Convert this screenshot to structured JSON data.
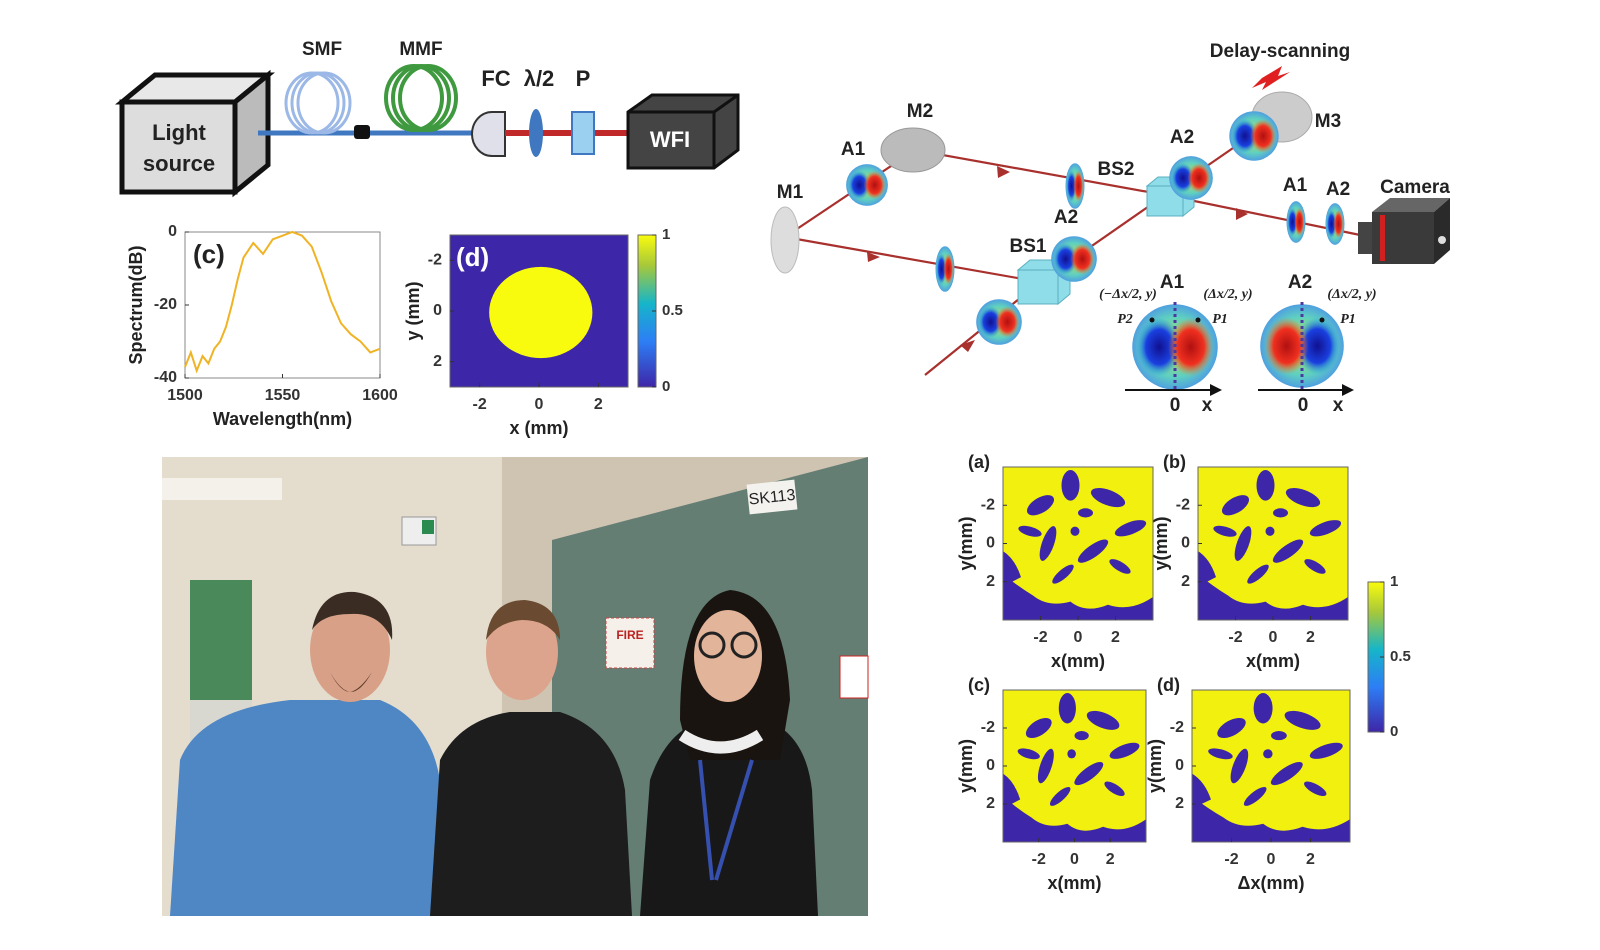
{
  "setup": {
    "light_source": [
      "Light",
      "source"
    ],
    "smf": "SMF",
    "mmf": "MMF",
    "fc": "FC",
    "half_wave": "λ/2",
    "polarizer": "P",
    "wfi": "WFI"
  },
  "interferometer": {
    "delay": "Delay-scanning",
    "m1": "M1",
    "m2": "M2",
    "m3": "M3",
    "bs1": "BS1",
    "bs2": "BS2",
    "camera": "Camera",
    "a1_arm": "A1",
    "a2_bs2": "A2",
    "a2_bs1": "A2",
    "a1_out": "A1",
    "a2_out": "A2",
    "inset_left": {
      "title": "A1",
      "left_point": "(−Δx/2, y)",
      "right_point": "(Δx/2, y)",
      "left_name": "P2",
      "right_name": "P1",
      "origin": "0",
      "axis": "x"
    },
    "inset_right": {
      "title": "A2",
      "right_point": "(Δx/2, y)",
      "right_name": "P1",
      "origin": "0",
      "axis": "x"
    }
  },
  "photo": {
    "door_sign": "SK113",
    "fire_sign": "FIRE"
  },
  "chart_data": [
    {
      "type": "line",
      "panel_label": "(c)",
      "x_label": "Wavelength(nm)",
      "y_label": "Spectrum(dB)",
      "color": "#f0b323",
      "x": [
        1500,
        1503,
        1506,
        1509,
        1512,
        1515,
        1518,
        1521,
        1524,
        1527,
        1530,
        1535,
        1540,
        1545,
        1550,
        1555,
        1560,
        1565,
        1570,
        1575,
        1580,
        1585,
        1590,
        1595,
        1600
      ],
      "values": [
        -37,
        -33,
        -38,
        -34,
        -36,
        -32,
        -30,
        -26,
        -20,
        -13,
        -7,
        -3,
        -6,
        -2,
        -1,
        0,
        -1,
        -4,
        -11,
        -19,
        -25,
        -28,
        -30,
        -33,
        -32
      ],
      "xlim": [
        1500,
        1600
      ],
      "ylim": [
        -40,
        0
      ],
      "xticks": [
        1500,
        1550,
        1600
      ],
      "yticks": [
        0,
        -20,
        -40
      ]
    },
    {
      "type": "image",
      "panel_label": "(d)",
      "x_label": "x (mm)",
      "y_label": "y (mm)",
      "xlim": [
        -3,
        3
      ],
      "ylim": [
        -3,
        3
      ],
      "xticks": [
        -2,
        0,
        2
      ],
      "yticks": [
        -2,
        0,
        2
      ],
      "colorbar_ticks": [
        0,
        0.5,
        1
      ]
    },
    {
      "type": "image",
      "panel_label": "(a)",
      "x_label": "x(mm)",
      "y_label": "y(mm)",
      "xlim": [
        -4,
        4
      ],
      "ylim": [
        -4,
        4
      ],
      "xticks": [
        -2,
        0,
        2
      ],
      "yticks": [
        -2,
        0,
        2
      ]
    },
    {
      "type": "image",
      "panel_label": "(b)",
      "x_label": "x(mm)",
      "y_label": "y(mm)",
      "xlim": [
        -4,
        4
      ],
      "ylim": [
        -4,
        4
      ],
      "xticks": [
        -2,
        0,
        2
      ],
      "yticks": [
        -2,
        0,
        2
      ]
    },
    {
      "type": "image",
      "panel_label": "(c)",
      "x_label": "x(mm)",
      "y_label": "y(mm)",
      "xlim": [
        -4,
        4
      ],
      "ylim": [
        -4,
        4
      ],
      "xticks": [
        -2,
        0,
        2
      ],
      "yticks": [
        -2,
        0,
        2
      ]
    },
    {
      "type": "image",
      "panel_label": "(d)",
      "x_label": "Δx(mm)",
      "y_label": "y(mm)",
      "xlim": [
        -4,
        4
      ],
      "ylim": [
        -4,
        4
      ],
      "xticks": [
        -2,
        0,
        2
      ],
      "yticks": [
        -2,
        0,
        2
      ],
      "colorbar_ticks": [
        0,
        0.5,
        1
      ]
    }
  ]
}
